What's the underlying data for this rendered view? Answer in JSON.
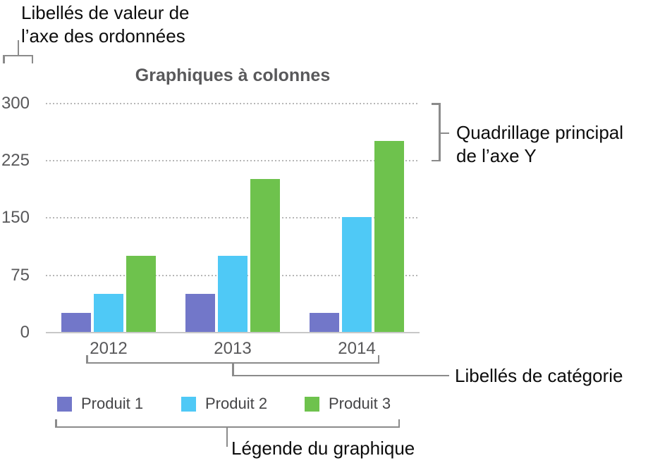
{
  "annotations": {
    "y_value_labels_line1": "Libellés de valeur de",
    "y_value_labels_line2": "l’axe des ordonnées",
    "gridline_label_line1": "Quadrillage principal",
    "gridline_label_line2": "de l’axe Y",
    "category_label": "Libellés de catégorie",
    "legend_label": "Légende du graphique"
  },
  "colors": {
    "annotation_line": "#8b8b8b",
    "gridline": "#b7b7b7",
    "axis_line": "#c8c8c8",
    "axis_text": "#58585a",
    "annotation_text": "#0d0d0d"
  },
  "chart_data": {
    "type": "bar",
    "title": "Graphiques à colonnes",
    "categories": [
      "2012",
      "2013",
      "2014"
    ],
    "series": [
      {
        "name": "Produit 1",
        "color": "#7277c9",
        "values": [
          25,
          50,
          25
        ]
      },
      {
        "name": "Produit 2",
        "color": "#4fc9f6",
        "values": [
          50,
          100,
          150
        ]
      },
      {
        "name": "Produit 3",
        "color": "#6ec24d",
        "values": [
          100,
          200,
          250
        ]
      }
    ],
    "y_ticks": [
      0,
      75,
      150,
      225,
      300
    ],
    "ylim": [
      0,
      300
    ],
    "grid": "horizontal dotted major gridlines",
    "legend_position": "bottom",
    "xlabel": "",
    "ylabel": ""
  }
}
